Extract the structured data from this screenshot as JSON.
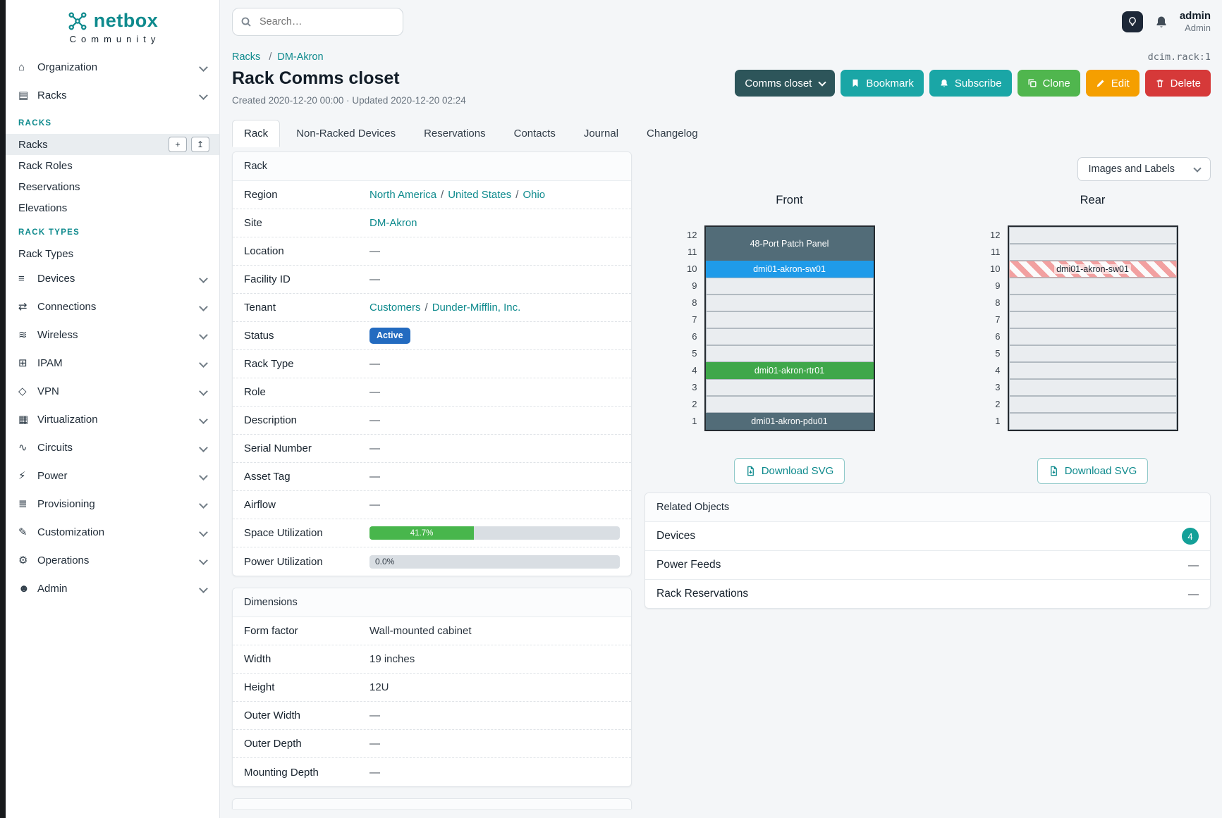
{
  "colors": {
    "accent_teal": "#0e8a8d",
    "button_teal": "#1aa6a6",
    "button_green": "#50b64e",
    "button_orange": "#f59f00",
    "button_red": "#d63939",
    "button_dark": "#2d555a",
    "status_blue": "#236bc0",
    "progress_green": "#48b64c",
    "badge_teal": "#14a098",
    "device_dark": "#526c78",
    "device_blue": "#1f9be9",
    "device_green": "#3fa74a"
  },
  "sidebar": {
    "brand": "netbox",
    "brand_sub": "Community",
    "top_items": [
      {
        "label": "Organization",
        "icon": "organization-icon"
      },
      {
        "label": "Racks",
        "icon": "racks-icon"
      }
    ],
    "sections": [
      {
        "title": "RACKS",
        "items": [
          {
            "label": "Racks",
            "active": true
          },
          {
            "label": "Rack Roles"
          },
          {
            "label": "Reservations"
          },
          {
            "label": "Elevations"
          }
        ]
      },
      {
        "title": "RACK TYPES",
        "items": [
          {
            "label": "Rack Types"
          }
        ]
      }
    ],
    "bottom_items": [
      {
        "label": "Devices",
        "icon": "devices-icon"
      },
      {
        "label": "Connections",
        "icon": "connections-icon"
      },
      {
        "label": "Wireless",
        "icon": "wireless-icon"
      },
      {
        "label": "IPAM",
        "icon": "ipam-icon"
      },
      {
        "label": "VPN",
        "icon": "vpn-icon"
      },
      {
        "label": "Virtualization",
        "icon": "virtualization-icon"
      },
      {
        "label": "Circuits",
        "icon": "circuits-icon"
      },
      {
        "label": "Power",
        "icon": "power-icon"
      },
      {
        "label": "Provisioning",
        "icon": "provisioning-icon"
      },
      {
        "label": "Customization",
        "icon": "customization-icon"
      },
      {
        "label": "Operations",
        "icon": "operations-icon"
      },
      {
        "label": "Admin",
        "icon": "admin-icon"
      }
    ]
  },
  "header": {
    "search_placeholder": "Search…",
    "user_name": "admin",
    "user_role": "Admin"
  },
  "breadcrumb": {
    "items": [
      "Racks",
      "DM-Akron"
    ],
    "object_id": "dcim.rack:1"
  },
  "page": {
    "title": "Rack Comms closet",
    "meta": "Created 2020-12-20 00:00 · Updated 2020-12-20 02:24"
  },
  "actions": {
    "primary": "Comms closet",
    "bookmark": "Bookmark",
    "subscribe": "Subscribe",
    "clone": "Clone",
    "edit": "Edit",
    "delete": "Delete"
  },
  "tabs": {
    "items": [
      "Rack",
      "Non-Racked Devices",
      "Reservations",
      "Contacts",
      "Journal",
      "Changelog"
    ],
    "active": "Rack"
  },
  "rack_card": {
    "title": "Rack",
    "labels": {
      "region": "Region",
      "site": "Site",
      "location": "Location",
      "facility_id": "Facility ID",
      "tenant": "Tenant",
      "status": "Status",
      "rack_type": "Rack Type",
      "role": "Role",
      "description": "Description",
      "serial_number": "Serial Number",
      "asset_tag": "Asset Tag",
      "airflow": "Airflow",
      "space_utilization": "Space Utilization",
      "power_utilization": "Power Utilization"
    },
    "values": {
      "region": [
        "North America",
        "United States",
        "Ohio"
      ],
      "site": "DM-Akron",
      "location": "—",
      "facility_id": "—",
      "tenant": [
        "Customers",
        "Dunder-Mifflin, Inc."
      ],
      "status": "Active",
      "rack_type": "—",
      "role": "—",
      "description": "—",
      "serial_number": "—",
      "asset_tag": "—",
      "airflow": "—",
      "space_utilization_pct": "41.7%",
      "power_utilization_pct": "0.0%"
    }
  },
  "dimensions_card": {
    "title": "Dimensions",
    "labels": {
      "form_factor": "Form factor",
      "width": "Width",
      "height": "Height",
      "outer_width": "Outer Width",
      "outer_depth": "Outer Depth",
      "mounting_depth": "Mounting Depth"
    },
    "values": {
      "form_factor": "Wall-mounted cabinet",
      "width": "19 inches",
      "height": "12U",
      "outer_width": "—",
      "outer_depth": "—",
      "mounting_depth": "—"
    }
  },
  "elevations": {
    "view_select": "Images and Labels",
    "download_label": "Download SVG",
    "front": {
      "title": "Front",
      "units": 12,
      "devices": [
        {
          "label": "48-Port Patch Panel",
          "top_unit": 12,
          "u_span": 2,
          "style": "dark"
        },
        {
          "label": "dmi01-akron-sw01",
          "top_unit": 10,
          "u_span": 1,
          "style": "blue"
        },
        {
          "label": "dmi01-akron-rtr01",
          "top_unit": 4,
          "u_span": 1,
          "style": "green"
        },
        {
          "label": "dmi01-akron-pdu01",
          "top_unit": 1,
          "u_span": 1,
          "style": "dark"
        }
      ]
    },
    "rear": {
      "title": "Rear",
      "units": 12,
      "devices": [
        {
          "label": "dmi01-akron-sw01",
          "top_unit": 10,
          "u_span": 1,
          "style": "striped"
        }
      ]
    }
  },
  "related_card": {
    "title": "Related Objects",
    "rows": [
      {
        "label": "Devices",
        "badge": "4"
      },
      {
        "label": "Power Feeds",
        "value": "—"
      },
      {
        "label": "Rack Reservations",
        "value": "—"
      }
    ]
  }
}
